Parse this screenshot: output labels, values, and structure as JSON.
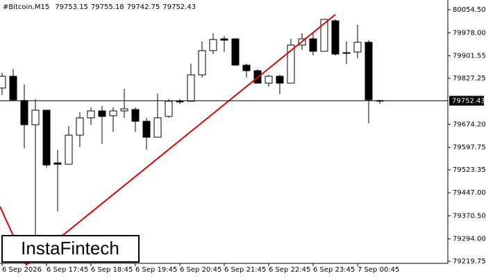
{
  "chart_data": {
    "type": "candlestick",
    "title": "#Bitcoin,M15",
    "watermark": "InstaFintech",
    "categories": [
      "6 Sep 2026",
      null,
      null,
      null,
      "6 Sep 17:45",
      null,
      null,
      null,
      "6 Sep 18:45",
      null,
      null,
      null,
      "6 Sep 19:45",
      null,
      null,
      null,
      "6 Sep 20:45",
      null,
      null,
      null,
      "6 Sep 21:45",
      null,
      null,
      null,
      "6 Sep 22:45",
      null,
      null,
      null,
      "6 Sep 23:45",
      null,
      null,
      null,
      "7 Sep 00:45",
      null,
      null
    ],
    "open": [
      79794.65,
      79833.74,
      79753.26,
      79672.77,
      79721.06,
      79546.29,
      79541.69,
      79638.28,
      79695.77,
      79718.76,
      79702.67,
      79718.76,
      79723.36,
      79684.27,
      79631.38,
      79700.37,
      79750.96,
      79750.96,
      79838.34,
      79918.83,
      79957.92,
      79957.92,
      79870.54,
      79852.14,
      79810.75,
      79833.74,
      79810.75,
      79937.23,
      79957.92,
      79916.53,
      80017.71,
      79911.93,
      79914.23,
      79946.42,
      79753.15
    ],
    "high": [
      79845.24,
      79856.74,
      79806.15,
      79757.86,
      79721.06,
      79589.99,
      79668.17,
      79714.16,
      79730.26,
      79734.86,
      79730.26,
      79792.35,
      79730.26,
      79695.77,
      79776.25,
      79757.86,
      79757.86,
      79875.14,
      79948.72,
      79976.32,
      79967.12,
      79957.92,
      79875.14,
      79856.74,
      79838.34,
      79838.34,
      79957.92,
      79976.32,
      79976.32,
      80022.31,
      80022.31,
      79948.72,
      80003.91,
      79953.32,
      79755.18
    ],
    "low": [
      79771.65,
      79750.96,
      79594.59,
      79225.0,
      79530.2,
      79385.32,
      79541.69,
      79599.18,
      79672.77,
      79608.38,
      79649.78,
      79695.77,
      79649.78,
      79589.99,
      79631.38,
      79695.77,
      79741.76,
      79750.96,
      79829.14,
      79907.33,
      79914.23,
      79870.54,
      79829.14,
      79810.75,
      79799.25,
      79773.95,
      79810.75,
      79921.13,
      79902.73,
      79916.53,
      79902.73,
      79875.14,
      79893.53,
      79677.37,
      79742.75
    ],
    "close": [
      79833.74,
      79755.56,
      79672.77,
      79721.06,
      79539.4,
      79541.69,
      79638.28,
      79695.77,
      79718.76,
      79700.37,
      79718.76,
      79725.66,
      79684.27,
      79631.38,
      79695.77,
      79750.96,
      79748.66,
      79838.34,
      79918.83,
      79955.62,
      79953.32,
      79870.54,
      79852.14,
      79810.75,
      79833.74,
      79810.75,
      79937.23,
      79957.92,
      79916.53,
      80022.31,
      79907.33,
      79909.63,
      79946.42,
      79755.56,
      79752.43
    ],
    "up_color": "#ffffff",
    "down_color": "#000000",
    "line_color": "#000000",
    "ylim": [
      79212.85,
      80086.7
    ],
    "yticks": [
      {
        "value": 80054.5,
        "label": "80054.50"
      },
      {
        "value": 79978,
        "label": "79978.00"
      },
      79901.55,
      79827.25,
      {
        "value": 79674.2,
        "label": "79674.20"
      },
      79597.75,
      79523.35,
      {
        "value": 79447,
        "label": "79447.00"
      },
      {
        "value": 79370.5,
        "label": "79370.50"
      },
      {
        "value": 79294,
        "label": "79294.00"
      },
      79219.75
    ]
  }
}
